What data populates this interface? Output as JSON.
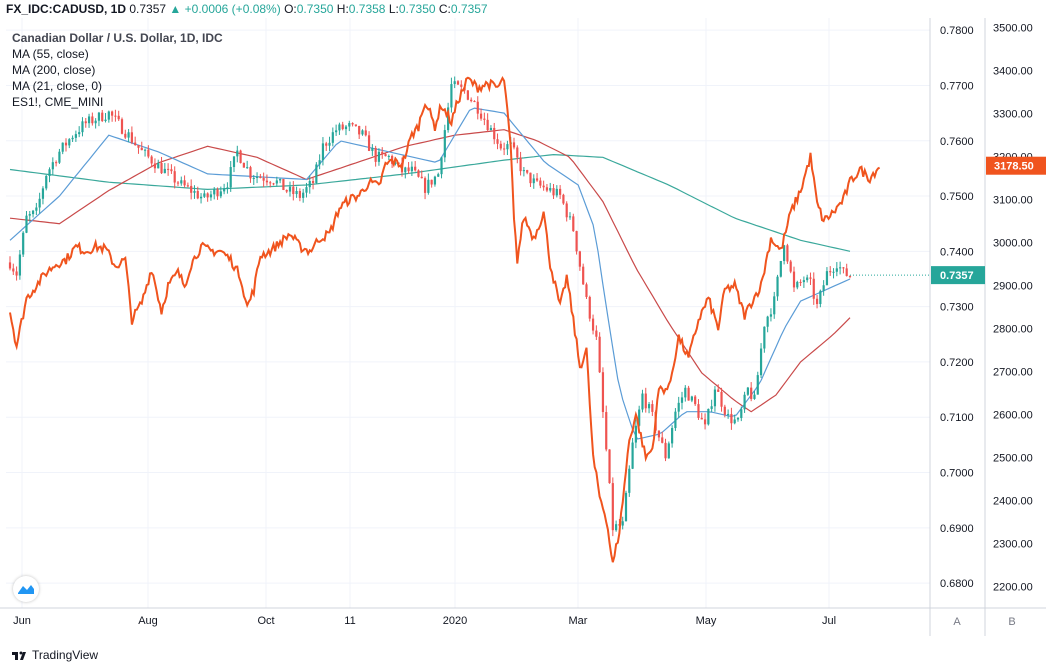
{
  "header": {
    "symbol": "FX_IDC:CADUSD, 1D",
    "last": "0.7357",
    "change": "+0.0006 (+0.08%)",
    "ohlc": [
      {
        "label": "O:",
        "value": "0.7350"
      },
      {
        "label": "H:",
        "value": "0.7358"
      },
      {
        "label": "L:",
        "value": "0.7350"
      },
      {
        "label": "C:",
        "value": "0.7357"
      }
    ]
  },
  "legend": {
    "title": "Canadian Dollar / U.S. Dollar, 1D, IDC",
    "studies": [
      "MA (55, close)",
      "MA (200, close)",
      "MA (21, close, 0)",
      "ES1!, CME_MINI"
    ]
  },
  "price_badges": {
    "es": "3178.50",
    "cad": "0.7357"
  },
  "axis_buttons": {
    "a": "A",
    "b": "B"
  },
  "footer": {
    "brand": "TradingView"
  },
  "colors": {
    "up": "#26a69a",
    "down": "#ef5350",
    "es": "#f0541e",
    "ma21": "#5b9cd6",
    "ma55": "#c94a4a",
    "ma200": "#3aa89b"
  },
  "chart_data": {
    "type": "candlestick",
    "x_ticks": [
      "Jun",
      "Aug",
      "Oct",
      "11",
      "2020",
      "Mar",
      "May",
      "Jul"
    ],
    "left_axis": {
      "ticks": [
        "0.7800",
        "0.7700",
        "0.7600",
        "0.7500",
        "0.7400",
        "0.7300",
        "0.7200",
        "0.7100",
        "0.7000",
        "0.6900",
        "0.6800"
      ],
      "range": [
        0.6755,
        0.7822
      ]
    },
    "right_axis": {
      "ticks": [
        "3500.00",
        "3400.00",
        "3300.00",
        "3200.00",
        "3100.00",
        "3000.00",
        "2900.00",
        "2800.00",
        "2700.00",
        "2600.00",
        "2500.00",
        "2400.00",
        "2300.00",
        "2200.00"
      ],
      "range": [
        2150,
        3522
      ]
    },
    "candle_anchors": [
      [
        0,
        0.738
      ],
      [
        4,
        0.736
      ],
      [
        10,
        0.746
      ],
      [
        16,
        0.747
      ],
      [
        22,
        0.754
      ],
      [
        30,
        0.758
      ],
      [
        38,
        0.761
      ],
      [
        45,
        0.763
      ],
      [
        52,
        0.764
      ],
      [
        60,
        0.765
      ],
      [
        66,
        0.763
      ],
      [
        72,
        0.761
      ],
      [
        80,
        0.758
      ],
      [
        88,
        0.756
      ],
      [
        96,
        0.754
      ],
      [
        104,
        0.752
      ],
      [
        110,
        0.751
      ],
      [
        118,
        0.7495
      ],
      [
        126,
        0.751
      ],
      [
        132,
        0.7525
      ],
      [
        138,
        0.758
      ],
      [
        146,
        0.754
      ],
      [
        152,
        0.7535
      ],
      [
        160,
        0.753
      ],
      [
        168,
        0.751
      ],
      [
        176,
        0.75
      ],
      [
        184,
        0.7525
      ],
      [
        190,
        0.759
      ],
      [
        198,
        0.762
      ],
      [
        206,
        0.7625
      ],
      [
        214,
        0.761
      ],
      [
        222,
        0.757
      ],
      [
        230,
        0.757
      ],
      [
        238,
        0.7545
      ],
      [
        244,
        0.7545
      ],
      [
        252,
        0.7515
      ],
      [
        260,
        0.754
      ],
      [
        268,
        0.77
      ],
      [
        276,
        0.769
      ],
      [
        284,
        0.766
      ],
      [
        290,
        0.763
      ],
      [
        298,
        0.759
      ],
      [
        304,
        0.759
      ],
      [
        312,
        0.754
      ],
      [
        320,
        0.752
      ],
      [
        328,
        0.751
      ],
      [
        334,
        0.75
      ],
      [
        342,
        0.744
      ],
      [
        350,
        0.731
      ],
      [
        356,
        0.724
      ],
      [
        362,
        0.704
      ],
      [
        366,
        0.69
      ],
      [
        372,
        0.6905
      ],
      [
        378,
        0.705
      ],
      [
        384,
        0.714
      ],
      [
        390,
        0.71
      ],
      [
        398,
        0.703
      ],
      [
        404,
        0.711
      ],
      [
        410,
        0.715
      ],
      [
        416,
        0.712
      ],
      [
        422,
        0.708
      ],
      [
        428,
        0.7155
      ],
      [
        436,
        0.71
      ],
      [
        442,
        0.709
      ],
      [
        448,
        0.715
      ],
      [
        452,
        0.713
      ],
      [
        458,
        0.727
      ],
      [
        464,
        0.731
      ],
      [
        470,
        0.742
      ],
      [
        476,
        0.733
      ],
      [
        482,
        0.735
      ],
      [
        486,
        0.734
      ],
      [
        490,
        0.73
      ],
      [
        496,
        0.736
      ],
      [
        502,
        0.738
      ],
      [
        506,
        0.736
      ],
      [
        510,
        0.7357
      ]
    ],
    "ma21_anchors": [
      [
        0,
        0.742
      ],
      [
        30,
        0.75
      ],
      [
        60,
        0.761
      ],
      [
        90,
        0.758
      ],
      [
        120,
        0.754
      ],
      [
        150,
        0.7535
      ],
      [
        180,
        0.753
      ],
      [
        200,
        0.76
      ],
      [
        230,
        0.758
      ],
      [
        260,
        0.756
      ],
      [
        280,
        0.766
      ],
      [
        300,
        0.765
      ],
      [
        325,
        0.756
      ],
      [
        345,
        0.752
      ],
      [
        355,
        0.744
      ],
      [
        362,
        0.73
      ],
      [
        370,
        0.715
      ],
      [
        380,
        0.706
      ],
      [
        395,
        0.707
      ],
      [
        410,
        0.711
      ],
      [
        425,
        0.711
      ],
      [
        440,
        0.71
      ],
      [
        455,
        0.716
      ],
      [
        470,
        0.726
      ],
      [
        480,
        0.731
      ],
      [
        495,
        0.733
      ],
      [
        510,
        0.735
      ]
    ],
    "ma55_anchors": [
      [
        0,
        0.746
      ],
      [
        30,
        0.745
      ],
      [
        60,
        0.751
      ],
      [
        90,
        0.756
      ],
      [
        120,
        0.759
      ],
      [
        150,
        0.757
      ],
      [
        180,
        0.753
      ],
      [
        210,
        0.756
      ],
      [
        240,
        0.759
      ],
      [
        270,
        0.761
      ],
      [
        300,
        0.762
      ],
      [
        320,
        0.76
      ],
      [
        340,
        0.757
      ],
      [
        360,
        0.749
      ],
      [
        380,
        0.737
      ],
      [
        400,
        0.727
      ],
      [
        420,
        0.718
      ],
      [
        440,
        0.713
      ],
      [
        450,
        0.711
      ],
      [
        465,
        0.714
      ],
      [
        480,
        0.72
      ],
      [
        500,
        0.725
      ],
      [
        510,
        0.728
      ]
    ],
    "ma200_anchors": [
      [
        0,
        0.7548
      ],
      [
        60,
        0.7525
      ],
      [
        120,
        0.7512
      ],
      [
        180,
        0.752
      ],
      [
        240,
        0.754
      ],
      [
        300,
        0.7565
      ],
      [
        330,
        0.7575
      ],
      [
        360,
        0.757
      ],
      [
        400,
        0.752
      ],
      [
        440,
        0.746
      ],
      [
        480,
        0.742
      ],
      [
        510,
        0.74
      ]
    ],
    "es_anchors": [
      [
        0,
        2840
      ],
      [
        4,
        2760
      ],
      [
        10,
        2870
      ],
      [
        16,
        2900
      ],
      [
        22,
        2930
      ],
      [
        28,
        2950
      ],
      [
        34,
        2960
      ],
      [
        40,
        2990
      ],
      [
        46,
        2980
      ],
      [
        52,
        2990
      ],
      [
        58,
        2985
      ],
      [
        64,
        2945
      ],
      [
        70,
        2960
      ],
      [
        74,
        2820
      ],
      [
        80,
        2860
      ],
      [
        86,
        2940
      ],
      [
        92,
        2840
      ],
      [
        96,
        2900
      ],
      [
        102,
        2930
      ],
      [
        106,
        2900
      ],
      [
        110,
        2950
      ],
      [
        116,
        2990
      ],
      [
        122,
        2980
      ],
      [
        128,
        2980
      ],
      [
        134,
        2960
      ],
      [
        140,
        2920
      ],
      [
        144,
        2850
      ],
      [
        148,
        2890
      ],
      [
        152,
        2970
      ],
      [
        158,
        2980
      ],
      [
        164,
        3000
      ],
      [
        170,
        3020
      ],
      [
        176,
        2990
      ],
      [
        182,
        2980
      ],
      [
        188,
        3010
      ],
      [
        194,
        3020
      ],
      [
        200,
        3080
      ],
      [
        206,
        3100
      ],
      [
        212,
        3110
      ],
      [
        218,
        3140
      ],
      [
        224,
        3130
      ],
      [
        228,
        3180
      ],
      [
        232,
        3190
      ],
      [
        238,
        3180
      ],
      [
        244,
        3250
      ],
      [
        248,
        3270
      ],
      [
        252,
        3330
      ],
      [
        258,
        3270
      ],
      [
        262,
        3320
      ],
      [
        268,
        3280
      ],
      [
        272,
        3330
      ],
      [
        278,
        3380
      ],
      [
        284,
        3360
      ],
      [
        290,
        3370
      ],
      [
        296,
        3360
      ],
      [
        300,
        3380
      ],
      [
        304,
        3220
      ],
      [
        306,
        3050
      ],
      [
        308,
        2960
      ],
      [
        312,
        3060
      ],
      [
        318,
        3010
      ],
      [
        324,
        3070
      ],
      [
        328,
        2950
      ],
      [
        334,
        2850
      ],
      [
        338,
        2920
      ],
      [
        342,
        2820
      ],
      [
        346,
        2710
      ],
      [
        350,
        2750
      ],
      [
        354,
        2500
      ],
      [
        358,
        2410
      ],
      [
        362,
        2360
      ],
      [
        366,
        2250
      ],
      [
        370,
        2330
      ],
      [
        376,
        2540
      ],
      [
        380,
        2600
      ],
      [
        386,
        2500
      ],
      [
        390,
        2520
      ],
      [
        394,
        2660
      ],
      [
        400,
        2660
      ],
      [
        406,
        2780
      ],
      [
        412,
        2730
      ],
      [
        418,
        2820
      ],
      [
        424,
        2870
      ],
      [
        430,
        2800
      ],
      [
        434,
        2890
      ],
      [
        440,
        2900
      ],
      [
        446,
        2830
      ],
      [
        450,
        2860
      ],
      [
        456,
        2900
      ],
      [
        462,
        3010
      ],
      [
        468,
        2980
      ],
      [
        474,
        3070
      ],
      [
        480,
        3120
      ],
      [
        486,
        3200
      ],
      [
        490,
        3090
      ],
      [
        494,
        3050
      ],
      [
        500,
        3070
      ],
      [
        506,
        3100
      ],
      [
        510,
        3140
      ],
      [
        516,
        3170
      ],
      [
        522,
        3150
      ],
      [
        528,
        3178.5
      ]
    ]
  }
}
